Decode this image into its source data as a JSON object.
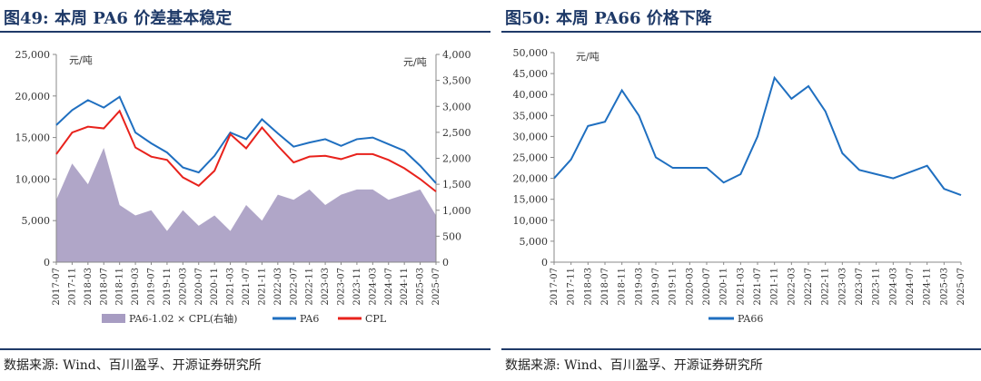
{
  "left": {
    "title": "图49:  本周 PA6 价差基本稳定",
    "source": "数据来源:  Wind、百川盈孚、开源证券研究所",
    "unit_left": "元/吨",
    "unit_right": "元/吨",
    "legend": [
      "PA6-1.02 × CPL(右轴)",
      "PA6",
      "CPL"
    ],
    "colors": {
      "area": "#a79cc2",
      "pa6": "#1f6fc0",
      "cpl": "#e8221c"
    }
  },
  "right": {
    "title": "图50:  本周 PA66 价格下降",
    "source": "数据来源:  Wind、百川盈孚、开源证券研究所",
    "unit_left": "元/吨",
    "legend": [
      "PA66"
    ],
    "colors": {
      "pa66": "#1f6fc0"
    }
  },
  "chart_data": [
    {
      "type": "line",
      "categories": [
        "2017-07",
        "2017-11",
        "2018-03",
        "2018-07",
        "2018-11",
        "2019-03",
        "2019-07",
        "2019-11",
        "2020-03",
        "2020-07",
        "2020-11",
        "2021-03",
        "2021-07",
        "2021-11",
        "2022-03",
        "2022-07",
        "2022-11",
        "2023-03",
        "2023-07",
        "2023-11",
        "2024-03",
        "2024-07",
        "2024-11",
        "2025-03",
        "2025-07"
      ],
      "ylim": [
        0,
        25000
      ],
      "yticks": [
        "0",
        "5,000",
        "10,000",
        "15,000",
        "20,000",
        "25,000"
      ],
      "y2lim": [
        0,
        4000
      ],
      "y2ticks": [
        "0",
        "500",
        "1,000",
        "1,500",
        "2,000",
        "2,500",
        "3,000",
        "3,500",
        "4,000"
      ],
      "series": [
        {
          "name": "PA6",
          "axis": "left",
          "values": [
            16500,
            18300,
            19500,
            18600,
            19900,
            15600,
            14300,
            13200,
            11400,
            10800,
            12800,
            15600,
            14800,
            17200,
            15500,
            13900,
            14400,
            14800,
            14000,
            14800,
            15000,
            14200,
            13400,
            11600,
            9500
          ]
        },
        {
          "name": "CPL",
          "axis": "left",
          "values": [
            13000,
            15600,
            16300,
            16100,
            18200,
            13800,
            12700,
            12300,
            10200,
            9200,
            11000,
            15400,
            13700,
            16200,
            14000,
            12000,
            12700,
            12800,
            12400,
            13000,
            13000,
            12300,
            11300,
            10000,
            8500
          ]
        },
        {
          "name": "PA6-1.02 × CPL(右轴)",
          "axis": "right",
          "type": "area",
          "values": [
            1200,
            1900,
            1500,
            2200,
            1100,
            900,
            1000,
            600,
            1000,
            700,
            900,
            600,
            1100,
            800,
            1300,
            1200,
            1400,
            1100,
            1300,
            1400,
            1400,
            1200,
            1300,
            1400,
            900
          ]
        }
      ]
    },
    {
      "type": "line",
      "categories": [
        "2017-07",
        "2017-11",
        "2018-03",
        "2018-07",
        "2018-11",
        "2019-03",
        "2019-07",
        "2019-11",
        "2020-03",
        "2020-07",
        "2020-11",
        "2021-03",
        "2021-07",
        "2021-11",
        "2022-03",
        "2022-07",
        "2022-11",
        "2023-03",
        "2023-07",
        "2023-11",
        "2024-03",
        "2024-07",
        "2024-11",
        "2025-03",
        "2025-07"
      ],
      "ylim": [
        0,
        50000
      ],
      "yticks": [
        "0",
        "5,000",
        "10,000",
        "15,000",
        "20,000",
        "25,000",
        "30,000",
        "35,000",
        "40,000",
        "45,000",
        "50,000"
      ],
      "series": [
        {
          "name": "PA66",
          "values": [
            20000,
            24500,
            32500,
            33500,
            41000,
            35000,
            25000,
            22500,
            22500,
            22500,
            19000,
            21000,
            30000,
            44000,
            39000,
            42000,
            36000,
            26000,
            22000,
            21000,
            20000,
            21500,
            23000,
            17500,
            16000
          ]
        }
      ]
    }
  ]
}
